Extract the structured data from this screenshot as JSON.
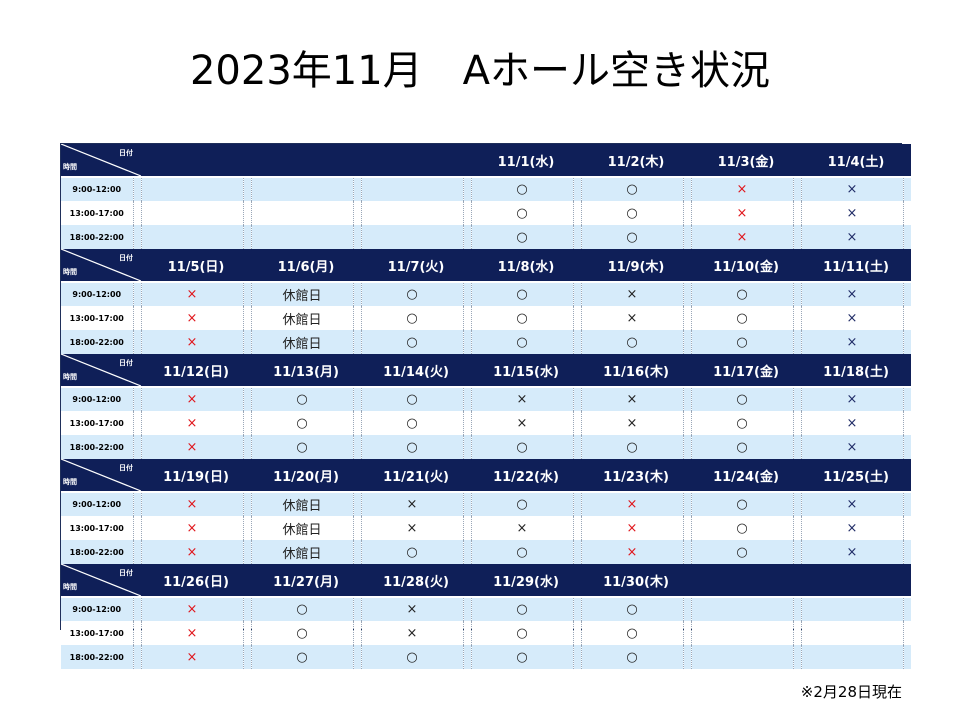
{
  "title": "2023年11月　Aホール空き状況",
  "corner": {
    "date_label": "日付",
    "time_label": "時間"
  },
  "time_slots": [
    "9:00-12:00",
    "13:00-17:00",
    "18:00-22:00"
  ],
  "marks": {
    "available": "○",
    "unavailable": "×",
    "closed": "休館日"
  },
  "colors": {
    "header_bg": "#0f1f58",
    "row_alt_bg": "#d6ebfa",
    "x_red": "#e0151b",
    "x_navy": "#1f2b66"
  },
  "weeks": [
    {
      "days": [
        {
          "date": "",
          "slots": [
            "",
            "",
            ""
          ]
        },
        {
          "date": "",
          "slots": [
            "",
            "",
            ""
          ]
        },
        {
          "date": "",
          "slots": [
            "",
            "",
            ""
          ]
        },
        {
          "date": "11/1(水)",
          "slots": [
            "○",
            "○",
            "○"
          ],
          "x": "k"
        },
        {
          "date": "11/2(木)",
          "slots": [
            "○",
            "○",
            "○"
          ],
          "x": "k"
        },
        {
          "date": "11/3(金)",
          "slots": [
            "×",
            "×",
            "×"
          ],
          "x": "r"
        },
        {
          "date": "11/4(土)",
          "slots": [
            "×",
            "×",
            "×"
          ],
          "x": "b"
        }
      ]
    },
    {
      "days": [
        {
          "date": "11/5(日)",
          "slots": [
            "×",
            "×",
            "×"
          ],
          "x": "r"
        },
        {
          "date": "11/6(月)",
          "slots": [
            "休館日",
            "休館日",
            "休館日"
          ],
          "x": "k"
        },
        {
          "date": "11/7(火)",
          "slots": [
            "○",
            "○",
            "○"
          ],
          "x": "k"
        },
        {
          "date": "11/8(水)",
          "slots": [
            "○",
            "○",
            "○"
          ],
          "x": "k"
        },
        {
          "date": "11/9(木)",
          "slots": [
            "×",
            "×",
            "○"
          ],
          "x": "k"
        },
        {
          "date": "11/10(金)",
          "slots": [
            "○",
            "○",
            "○"
          ],
          "x": "k"
        },
        {
          "date": "11/11(土)",
          "slots": [
            "×",
            "×",
            "×"
          ],
          "x": "b"
        }
      ]
    },
    {
      "days": [
        {
          "date": "11/12(日)",
          "slots": [
            "×",
            "×",
            "×"
          ],
          "x": "r"
        },
        {
          "date": "11/13(月)",
          "slots": [
            "○",
            "○",
            "○"
          ],
          "x": "k"
        },
        {
          "date": "11/14(火)",
          "slots": [
            "○",
            "○",
            "○"
          ],
          "x": "k"
        },
        {
          "date": "11/15(水)",
          "slots": [
            "×",
            "×",
            "○"
          ],
          "x": "k"
        },
        {
          "date": "11/16(木)",
          "slots": [
            "×",
            "×",
            "○"
          ],
          "x": "k"
        },
        {
          "date": "11/17(金)",
          "slots": [
            "○",
            "○",
            "○"
          ],
          "x": "k"
        },
        {
          "date": "11/18(土)",
          "slots": [
            "×",
            "×",
            "×"
          ],
          "x": "b"
        }
      ]
    },
    {
      "days": [
        {
          "date": "11/19(日)",
          "slots": [
            "×",
            "×",
            "×"
          ],
          "x": "r"
        },
        {
          "date": "11/20(月)",
          "slots": [
            "休館日",
            "休館日",
            "休館日"
          ],
          "x": "k"
        },
        {
          "date": "11/21(火)",
          "slots": [
            "×",
            "×",
            "○"
          ],
          "x": "k"
        },
        {
          "date": "11/22(水)",
          "slots": [
            "○",
            "×",
            "○"
          ],
          "x": "k"
        },
        {
          "date": "11/23(木)",
          "slots": [
            "×",
            "×",
            "×"
          ],
          "x": "r"
        },
        {
          "date": "11/24(金)",
          "slots": [
            "○",
            "○",
            "○"
          ],
          "x": "k"
        },
        {
          "date": "11/25(土)",
          "slots": [
            "×",
            "×",
            "×"
          ],
          "x": "b"
        }
      ]
    },
    {
      "days": [
        {
          "date": "11/26(日)",
          "slots": [
            "×",
            "×",
            "×"
          ],
          "x": "r"
        },
        {
          "date": "11/27(月)",
          "slots": [
            "○",
            "○",
            "○"
          ],
          "x": "k"
        },
        {
          "date": "11/28(火)",
          "slots": [
            "×",
            "×",
            "○"
          ],
          "x": "k"
        },
        {
          "date": "11/29(水)",
          "slots": [
            "○",
            "○",
            "○"
          ],
          "x": "k"
        },
        {
          "date": "11/30(木)",
          "slots": [
            "○",
            "○",
            "○"
          ],
          "x": "k"
        },
        {
          "date": "",
          "slots": [
            "",
            "",
            ""
          ]
        },
        {
          "date": "",
          "slots": [
            "",
            "",
            ""
          ]
        }
      ]
    }
  ],
  "note": "※2月28日現在"
}
